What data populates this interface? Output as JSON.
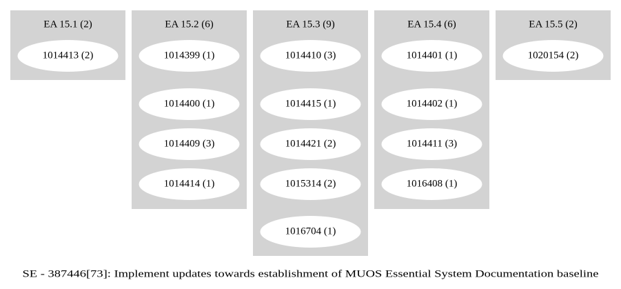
{
  "diagram": {
    "caption": "SE - 387446[73]: Implement updates towards establishment of MUOS Essential System Documentation baseline",
    "clusters": [
      {
        "label": "EA 15.1 (2)",
        "nodes": [
          "1014413 (2)"
        ]
      },
      {
        "label": "EA 15.2 (6)",
        "nodes": [
          "1014399 (1)",
          "1014400 (1)",
          "1014409 (3)",
          "1014414 (1)"
        ]
      },
      {
        "label": "EA 15.3 (9)",
        "nodes": [
          "1014410 (3)",
          "1014415 (1)",
          "1014421 (2)",
          "1015314 (2)",
          "1016704 (1)"
        ]
      },
      {
        "label": "EA 15.4 (6)",
        "nodes": [
          "1014401 (1)",
          "1014402 (1)",
          "1014411 (3)",
          "1016408 (1)"
        ]
      },
      {
        "label": "EA 15.5 (2)",
        "nodes": [
          "1020154 (2)"
        ]
      }
    ],
    "colors": {
      "cluster_fill": "#d3d3d3",
      "node_fill": "#ffffff",
      "text": "#000000",
      "background": "#ffffff"
    }
  }
}
